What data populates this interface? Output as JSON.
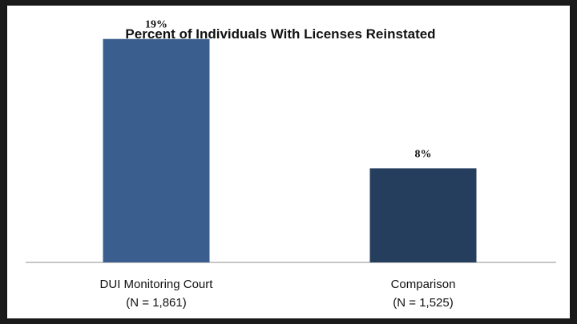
{
  "chart_data": {
    "type": "bar",
    "title": "Percent of Individuals With Licenses Reinstated",
    "categories": [
      "DUI Monitoring Court",
      "Comparison"
    ],
    "category_sublabels": [
      "(N = 1,861)",
      "(N = 1,525)"
    ],
    "values": [
      19,
      8
    ],
    "value_labels": [
      "19%",
      "8%"
    ],
    "bar_colors": [
      "#3a5f8e",
      "#253e5e"
    ],
    "xlabel": "",
    "ylabel": "",
    "ylim": [
      0,
      20
    ],
    "grid": false,
    "legend": false
  }
}
